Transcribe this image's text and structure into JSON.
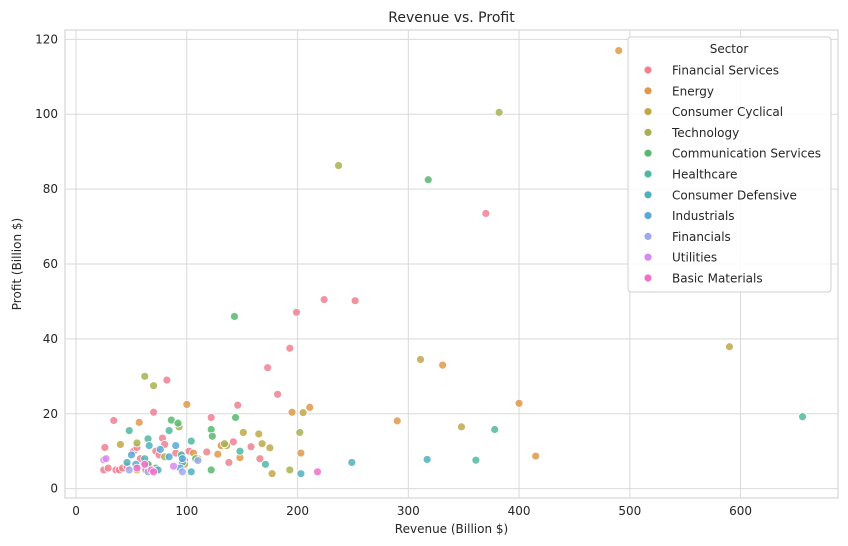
{
  "chart_data": {
    "type": "scatter",
    "title": "Revenue vs. Profit",
    "xlabel": "Revenue (Billion $)",
    "ylabel": "Profit (Billion $)",
    "xlim": [
      -10,
      688
    ],
    "ylim": [
      -2.5,
      122.5
    ],
    "xticks": [
      0,
      100,
      200,
      300,
      400,
      500,
      600
    ],
    "yticks": [
      0,
      20,
      40,
      60,
      80,
      100,
      120
    ],
    "grid": true,
    "legend": {
      "title": "Sector",
      "position": "top-right"
    },
    "series": [
      {
        "name": "Financial Services",
        "color": "#f08090",
        "points": [
          [
            25,
            5
          ],
          [
            26,
            11
          ],
          [
            29,
            5.5
          ],
          [
            34,
            18.2
          ],
          [
            36,
            5
          ],
          [
            39,
            5
          ],
          [
            42,
            5.5
          ],
          [
            46,
            6
          ],
          [
            52,
            10
          ],
          [
            55,
            11
          ],
          [
            58,
            8
          ],
          [
            60,
            6
          ],
          [
            63,
            5
          ],
          [
            66,
            6
          ],
          [
            70,
            20.4
          ],
          [
            72,
            10
          ],
          [
            75,
            9
          ],
          [
            78,
            13.5
          ],
          [
            80,
            11.8
          ],
          [
            82,
            29
          ],
          [
            90,
            9.5
          ],
          [
            96,
            9
          ],
          [
            98,
            7.5
          ],
          [
            102,
            10
          ],
          [
            110,
            8
          ],
          [
            118,
            9.8
          ],
          [
            122,
            19
          ],
          [
            138,
            7
          ],
          [
            142,
            12.5
          ],
          [
            146,
            22.3
          ],
          [
            158,
            11.2
          ],
          [
            166,
            8
          ],
          [
            173,
            32.3
          ],
          [
            182,
            25.2
          ],
          [
            193,
            37.5
          ],
          [
            199,
            47.1
          ],
          [
            224,
            50.5
          ],
          [
            252,
            50.2
          ],
          [
            370,
            73.5
          ]
        ]
      },
      {
        "name": "Energy",
        "color": "#e09848",
        "points": [
          [
            57,
            17.7
          ],
          [
            72,
            5
          ],
          [
            100,
            22.5
          ],
          [
            106,
            9.5
          ],
          [
            128,
            9.2
          ],
          [
            131,
            11.5
          ],
          [
            148,
            8.3
          ],
          [
            195,
            20.4
          ],
          [
            203,
            9.5
          ],
          [
            211,
            21.7
          ],
          [
            290,
            18.1
          ],
          [
            331,
            33
          ],
          [
            400,
            22.8
          ],
          [
            415,
            8.7
          ],
          [
            490,
            117
          ]
        ]
      },
      {
        "name": "Consumer Cyclical",
        "color": "#c0a848",
        "points": [
          [
            40,
            11.8
          ],
          [
            55,
            5
          ],
          [
            98,
            6.5
          ],
          [
            110,
            8
          ],
          [
            136,
            11.5
          ],
          [
            151,
            15
          ],
          [
            165,
            14.6
          ],
          [
            168,
            12
          ],
          [
            175,
            10.9
          ],
          [
            177,
            4
          ],
          [
            205,
            20.3
          ],
          [
            311,
            34.5
          ],
          [
            348,
            16.5
          ],
          [
            590,
            37.9
          ]
        ]
      },
      {
        "name": "Technology",
        "color": "#a8b050",
        "points": [
          [
            55,
            12.2
          ],
          [
            62,
            30
          ],
          [
            70,
            27.5
          ],
          [
            80,
            8.5
          ],
          [
            93,
            16.5
          ],
          [
            134,
            12
          ],
          [
            193,
            5
          ],
          [
            202,
            15
          ],
          [
            237,
            86.3
          ],
          [
            382,
            100.5
          ]
        ]
      },
      {
        "name": "Communication Services",
        "color": "#58b870",
        "points": [
          [
            65,
            6.5
          ],
          [
            86,
            18.3
          ],
          [
            92,
            17.5
          ],
          [
            108,
            8
          ],
          [
            122,
            15.8
          ],
          [
            123,
            14
          ],
          [
            122,
            5
          ],
          [
            144,
            19
          ],
          [
            143,
            46
          ],
          [
            318,
            82.5
          ]
        ]
      },
      {
        "name": "Healthcare",
        "color": "#50b8a0",
        "points": [
          [
            48,
            15.5
          ],
          [
            65,
            13.3
          ],
          [
            72,
            5.5
          ],
          [
            84,
            15.5
          ],
          [
            95,
            9
          ],
          [
            104,
            12.7
          ],
          [
            148,
            10
          ],
          [
            171,
            6.5
          ],
          [
            378,
            15.8
          ],
          [
            361,
            7.6
          ],
          [
            656,
            19.2
          ]
        ]
      },
      {
        "name": "Consumer Defensive",
        "color": "#50b0c0",
        "points": [
          [
            46,
            7
          ],
          [
            56,
            6
          ],
          [
            62,
            8
          ],
          [
            66,
            11.5
          ],
          [
            74,
            5
          ],
          [
            96,
            7
          ],
          [
            104,
            4.5
          ],
          [
            203,
            4
          ],
          [
            249,
            7
          ],
          [
            317,
            7.8
          ]
        ]
      },
      {
        "name": "Industrials",
        "color": "#58a8d8",
        "points": [
          [
            50,
            9
          ],
          [
            54,
            6.5
          ],
          [
            76,
            10.5
          ],
          [
            84,
            8.5
          ],
          [
            90,
            11.5
          ],
          [
            94,
            5.5
          ],
          [
            96,
            8
          ]
        ]
      },
      {
        "name": "Financials",
        "color": "#a0a8f0",
        "points": [
          [
            48,
            5
          ],
          [
            65,
            4.5
          ],
          [
            96,
            4.5
          ],
          [
            110,
            7.5
          ]
        ]
      },
      {
        "name": "Utilities",
        "color": "#d888f0",
        "points": [
          [
            25,
            7.7
          ],
          [
            27,
            8
          ],
          [
            88,
            6
          ]
        ]
      },
      {
        "name": "Basic Materials",
        "color": "#f070c8",
        "points": [
          [
            55,
            5.5
          ],
          [
            62,
            6.5
          ],
          [
            68,
            5
          ],
          [
            70,
            4.5
          ],
          [
            218,
            4.5
          ]
        ]
      }
    ]
  }
}
